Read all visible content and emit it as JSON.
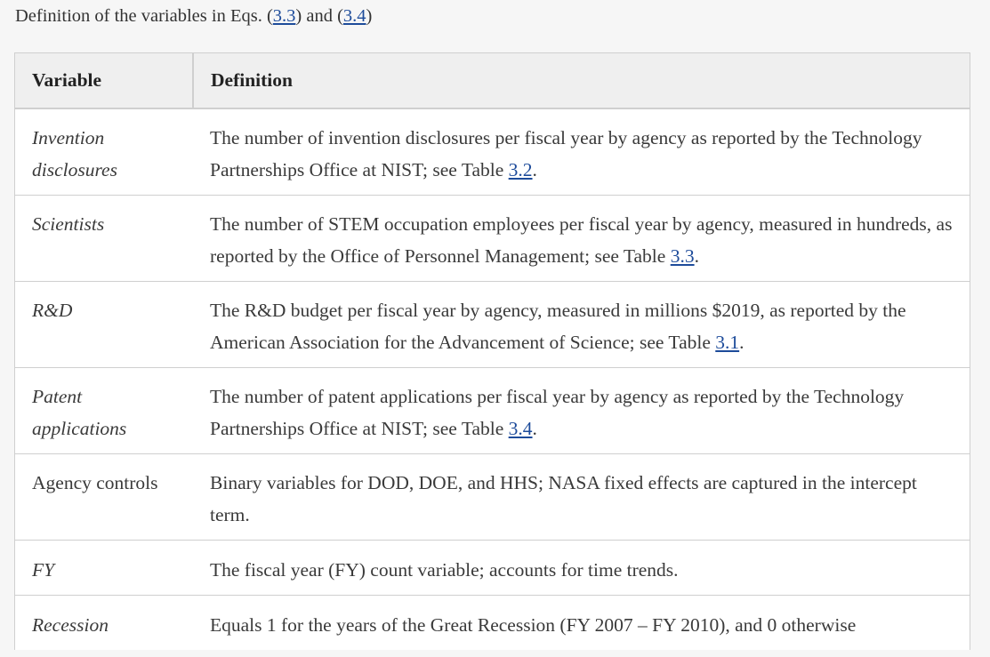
{
  "caption": {
    "prefix": "Definition of the variables in Eqs. (",
    "ref1": "3.3",
    "middle": ") and (",
    "ref2": "3.4",
    "suffix": ")"
  },
  "table": {
    "headers": [
      "Variable",
      "Definition"
    ],
    "rows": [
      {
        "variable": "Invention disclosures",
        "italic": true,
        "definition": "The number of invention disclosures per fiscal year by agency as reported by the Technology Partnerships Office at NIST; see Table ",
        "ref": "3.2",
        "after": "."
      },
      {
        "variable": "Scientists",
        "italic": true,
        "definition": "The number of STEM occupation employees per fiscal year by agency, measured in hundreds, as reported by the Office of Personnel Management; see Table ",
        "ref": "3.3",
        "after": "."
      },
      {
        "variable": "R&D",
        "italic": true,
        "definition": "The R&D budget per fiscal year by agency, measured in millions $2019, as reported by the American Association for the Advancement of Science; see Table ",
        "ref": "3.1",
        "after": "."
      },
      {
        "variable": "Patent applications",
        "italic": true,
        "definition": "The number of patent applications per fiscal year by agency as reported by the Technology Partnerships Office at NIST; see Table ",
        "ref": "3.4",
        "after": "."
      },
      {
        "variable": "Agency controls",
        "italic": false,
        "definition": "Binary variables for DOD, DOE, and HHS; NASA fixed effects are captured in the intercept term.",
        "ref": "",
        "after": ""
      },
      {
        "variable": "FY",
        "italic": true,
        "definition": "The fiscal year (FY) count variable; accounts for time trends.",
        "ref": "",
        "after": ""
      },
      {
        "variable": "Recession",
        "italic": true,
        "definition": "Equals 1 for the years of the Great Recession (FY 2007 – FY 2010), and 0 otherwise",
        "ref": "",
        "after": ""
      }
    ]
  },
  "colors": {
    "link": "#1d4b9a",
    "header_bg": "#efefef",
    "border": "#cfcfcf",
    "page_bg": "#f6f6f6"
  }
}
